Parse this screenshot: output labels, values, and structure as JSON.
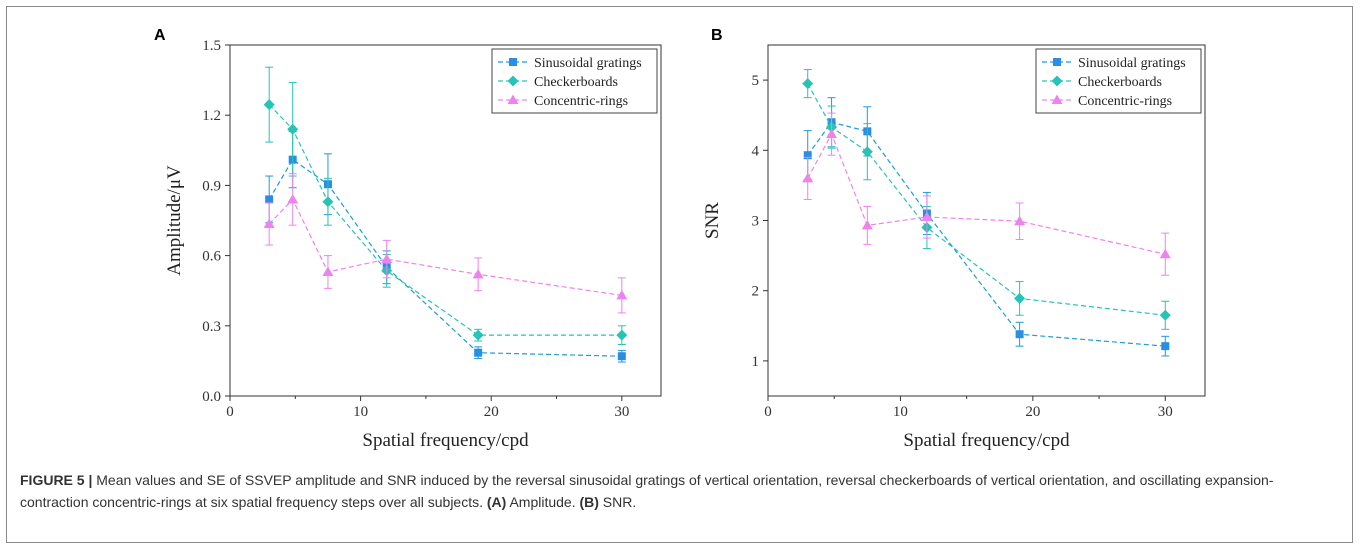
{
  "panels": [
    {
      "letter": "A"
    },
    {
      "letter": "B"
    }
  ],
  "colors": {
    "sinusoidal": "#1e9bd7",
    "sinusoidal_marker": "#2a8fe0",
    "checkerboards": "#27c4b5",
    "concentric": "#ee82ee"
  },
  "chart_data": [
    {
      "type": "line",
      "xlabel": "Spatial frequency/cpd",
      "ylabel": "Amplitude/μV",
      "xlim": [
        0,
        33
      ],
      "ylim": [
        0,
        1.5
      ],
      "xticks": [
        0,
        10,
        20,
        30
      ],
      "yticks": [
        0.0,
        0.3,
        0.6,
        0.9,
        1.2,
        1.5
      ],
      "ytick_labels": [
        "0.0",
        "0.3",
        "0.6",
        "0.9",
        "1.2",
        "1.5"
      ],
      "legend_position": "top-right",
      "x": [
        3,
        4.8,
        7.5,
        12,
        19,
        30
      ],
      "series": [
        {
          "name": "Sinusoidal gratings",
          "marker": "square",
          "values": [
            0.84,
            1.01,
            0.905,
            0.55,
            0.185,
            0.17
          ],
          "err": [
            0.1,
            0.12,
            0.13,
            0.07,
            0.025,
            0.025
          ]
        },
        {
          "name": "Checkerboards",
          "marker": "diamond",
          "values": [
            1.245,
            1.14,
            0.83,
            0.535,
            0.26,
            0.26
          ],
          "err": [
            0.16,
            0.2,
            0.1,
            0.07,
            0.025,
            0.04
          ]
        },
        {
          "name": "Concentric-rings",
          "marker": "triangle",
          "values": [
            0.735,
            0.84,
            0.53,
            0.585,
            0.52,
            0.43
          ],
          "err": [
            0.09,
            0.11,
            0.07,
            0.08,
            0.07,
            0.075
          ]
        }
      ]
    },
    {
      "type": "line",
      "xlabel": "Spatial frequency/cpd",
      "ylabel": "SNR",
      "xlim": [
        0,
        33
      ],
      "ylim": [
        0.5,
        5.5
      ],
      "xticks": [
        0,
        10,
        20,
        30
      ],
      "yticks": [
        1,
        2,
        3,
        4,
        5
      ],
      "ytick_labels": [
        "1",
        "2",
        "3",
        "4",
        "5"
      ],
      "legend_position": "top-right",
      "x": [
        3,
        4.8,
        7.5,
        12,
        19,
        30
      ],
      "series": [
        {
          "name": "Sinusoidal gratings",
          "marker": "square",
          "values": [
            3.93,
            4.4,
            4.27,
            3.1,
            1.38,
            1.21
          ],
          "err": [
            0.35,
            0.35,
            0.35,
            0.3,
            0.17,
            0.14
          ]
        },
        {
          "name": "Checkerboards",
          "marker": "diamond",
          "values": [
            4.95,
            4.33,
            3.98,
            2.9,
            1.89,
            1.65
          ],
          "err": [
            0.2,
            0.3,
            0.4,
            0.3,
            0.24,
            0.2
          ]
        },
        {
          "name": "Concentric-rings",
          "marker": "triangle",
          "values": [
            3.6,
            4.23,
            2.93,
            3.05,
            2.99,
            2.52
          ],
          "err": [
            0.3,
            0.3,
            0.27,
            0.3,
            0.26,
            0.3
          ]
        }
      ]
    }
  ],
  "caption": {
    "label": "FIGURE 5 |",
    "text": " Mean values and SE of SSVEP amplitude and SNR induced by the reversal sinusoidal gratings of vertical orientation, reversal checkerboards of vertical orientation, and oscillating expansion-contraction concentric-rings at six spatial frequency steps over all subjects. ",
    "part_a_label": "(A)",
    "part_a_text": " Amplitude. ",
    "part_b_label": "(B)",
    "part_b_text": " SNR."
  }
}
